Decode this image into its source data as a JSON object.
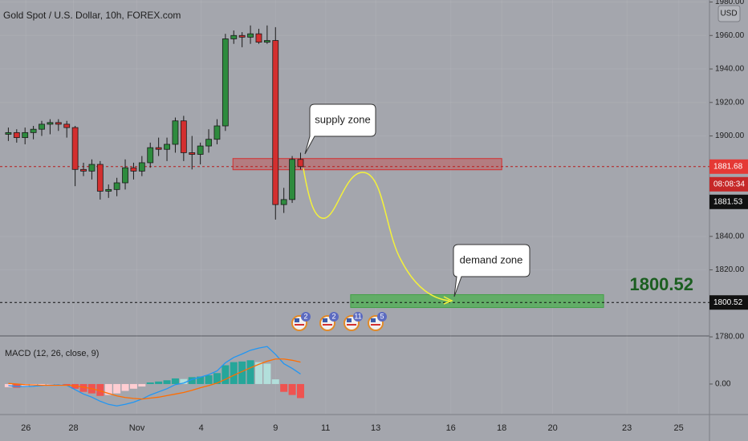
{
  "chart_data": {
    "type": "candlestick",
    "title": "Gold Spot / U.S. Dollar, 10h, FOREX.com",
    "currency": "USD",
    "x": [
      1,
      2,
      3,
      4,
      5,
      6,
      7,
      8,
      9,
      10,
      11,
      12,
      13,
      14,
      15,
      16,
      17,
      18,
      19,
      20,
      21,
      22,
      23,
      24,
      25,
      26,
      27,
      28,
      29,
      30,
      31,
      32,
      33,
      34,
      35,
      36
    ],
    "open": [
      1901,
      1902,
      1899,
      1902,
      1904,
      1907,
      1908,
      1907,
      1905,
      1880,
      1879,
      1883,
      1867,
      1868,
      1872,
      1881,
      1879,
      1884,
      1893,
      1892,
      1895,
      1909,
      1890,
      1889,
      1894,
      1898,
      1906,
      1958,
      1960,
      1959,
      1961,
      1956,
      1957,
      1859,
      1862,
      1886
    ],
    "high": [
      1905,
      1904,
      1905,
      1906,
      1909,
      1910,
      1910,
      1909,
      1906,
      1884,
      1886,
      1885,
      1871,
      1875,
      1886,
      1884,
      1888,
      1896,
      1899,
      1899,
      1911,
      1912,
      1900,
      1896,
      1904,
      1910,
      1961,
      1963,
      1962,
      1966,
      1964,
      1966,
      1965,
      1869,
      1888,
      1890
    ],
    "low": [
      1897,
      1896,
      1895,
      1898,
      1900,
      1901,
      1903,
      1899,
      1870,
      1876,
      1874,
      1862,
      1863,
      1864,
      1868,
      1874,
      1876,
      1881,
      1888,
      1885,
      1890,
      1885,
      1880,
      1883,
      1890,
      1895,
      1903,
      1955,
      1953,
      1955,
      1955,
      1955,
      1850,
      1854,
      1860,
      1880
    ],
    "close": [
      1902,
      1899,
      1902,
      1904,
      1907,
      1908,
      1907,
      1905,
      1880,
      1879,
      1883,
      1867,
      1868,
      1872,
      1881,
      1879,
      1884,
      1893,
      1892,
      1895,
      1909,
      1890,
      1889,
      1894,
      1898,
      1906,
      1958,
      1960,
      1959,
      1961,
      1956,
      1957,
      1859,
      1862,
      1886,
      1881.68
    ],
    "up_color": "#2e8b3e",
    "down_color": "#d32f2f",
    "xlim": [
      0,
      84.6
    ],
    "xticks": [
      {
        "value": 3.1,
        "label": "26"
      },
      {
        "value": 8.8,
        "label": "28"
      },
      {
        "value": 16.4,
        "label": "Nov"
      },
      {
        "value": 24.1,
        "label": "4"
      },
      {
        "value": 33.0,
        "label": "9"
      },
      {
        "value": 39.0,
        "label": "11"
      },
      {
        "value": 45.0,
        "label": "13"
      },
      {
        "value": 54.0,
        "label": "16"
      },
      {
        "value": 60.1,
        "label": "18"
      },
      {
        "value": 66.2,
        "label": "20"
      },
      {
        "value": 75.1,
        "label": "23"
      },
      {
        "value": 81.3,
        "label": "25"
      }
    ],
    "ylim": [
      1781,
      1981.2
    ],
    "yticks": [
      {
        "value": 1980,
        "label": "1980.00"
      },
      {
        "value": 1960,
        "label": "1960.00"
      },
      {
        "value": 1940,
        "label": "1940.00"
      },
      {
        "value": 1920,
        "label": "1920.00"
      },
      {
        "value": 1900,
        "label": "1900.00"
      },
      {
        "value": 1840,
        "label": "1840.00"
      },
      {
        "value": 1820,
        "label": "1820.00"
      },
      {
        "value": 1780,
        "label": "1780.00"
      }
    ],
    "grid": true,
    "current_price": 1881.68,
    "countdown": "08:08:34",
    "bid_price": 1881.53,
    "target_price": 1800.52,
    "supply_zone": {
      "label": "supply zone",
      "x": [
        27.9,
        60.1
      ],
      "y": [
        1879.8,
        1886.5
      ]
    },
    "demand_zone": {
      "label": "demand zone",
      "x": [
        42.0,
        72.3
      ],
      "y": [
        1797.5,
        1805.2
      ]
    },
    "events": [
      "2",
      "2",
      "11",
      "5"
    ],
    "macd": {
      "title": "MACD (12, 26, close, 9)",
      "ylim": [
        -9.5,
        14.6
      ],
      "yticks": [
        {
          "value": 0,
          "label": "0.00"
        }
      ],
      "histogram": [
        -1.0,
        -1.2,
        -1.0,
        -0.8,
        -0.6,
        -0.5,
        -0.4,
        -0.5,
        -1.5,
        -2.5,
        -3.0,
        -3.8,
        -3.5,
        -3.0,
        -2.2,
        -1.5,
        -0.8,
        0.5,
        0.8,
        1.2,
        1.8,
        1.6,
        2.2,
        2.4,
        2.8,
        3.5,
        6.0,
        7.0,
        7.2,
        7.6,
        7.0,
        6.5,
        1.5,
        -2.5,
        -3.5,
        -4.5
      ],
      "macd_line": [
        -0.5,
        -0.8,
        -0.8,
        -0.7,
        -0.5,
        -0.3,
        -0.2,
        -0.4,
        -1.8,
        -3.2,
        -4.2,
        -5.5,
        -6.5,
        -7.0,
        -6.5,
        -5.8,
        -4.8,
        -3.5,
        -2.5,
        -1.5,
        -0.2,
        0.3,
        1.5,
        2.2,
        3.0,
        4.2,
        6.8,
        8.5,
        9.6,
        10.8,
        11.5,
        12.0,
        9.5,
        6.5,
        5.0,
        3.2
      ],
      "signal_line": [
        0.2,
        0,
        -0.2,
        -0.3,
        -0.4,
        -0.4,
        -0.4,
        -0.4,
        -0.6,
        -1.0,
        -1.5,
        -2.2,
        -3.0,
        -3.8,
        -4.3,
        -4.6,
        -4.8,
        -4.5,
        -4.2,
        -3.7,
        -3.2,
        -2.7,
        -2.0,
        -1.2,
        -0.5,
        0.3,
        1.5,
        2.8,
        4.0,
        5.2,
        6.3,
        7.3,
        8.0,
        8.0,
        7.6,
        7.0
      ],
      "macd_color": "#2196f3",
      "signal_color": "#ff6d00",
      "hist_colors": {
        "rise_pos": "#26a69a",
        "fall_pos": "#b2dfdb",
        "rise_neg": "#ffcdd2",
        "fall_neg": "#ef5350"
      }
    }
  }
}
